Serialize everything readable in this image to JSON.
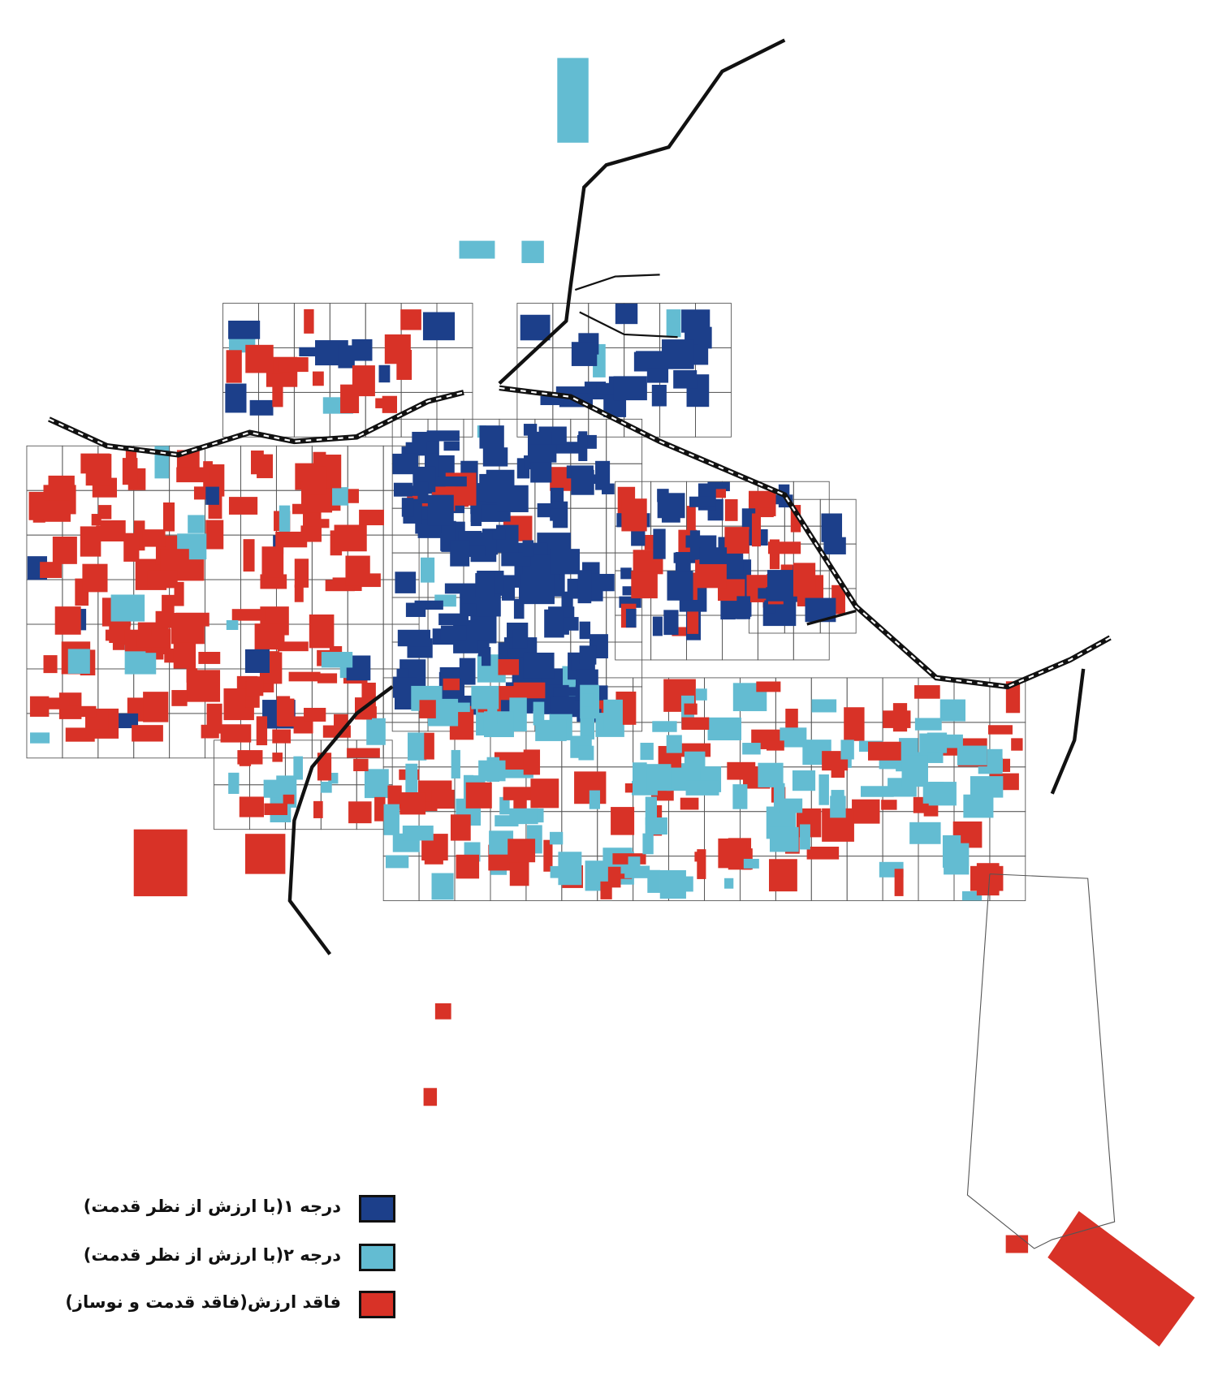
{
  "map": {
    "colors": {
      "grade_1": "#1c3f8a",
      "grade_2": "#63bcd2",
      "no_value": "#d83227",
      "roads": "#111111",
      "parcel_outline": "#555555"
    }
  },
  "legend": {
    "items": [
      {
        "label": "درجه ۱(با ارزش از نظر قدمت)",
        "color": "#1c3f8a"
      },
      {
        "label": "درجه ۲(با ارزش از نظر قدمت)",
        "color": "#63bcd2"
      },
      {
        "label": "فاقد ارزش(فاقد قدمت و نوساز)",
        "color": "#d83227"
      }
    ]
  }
}
